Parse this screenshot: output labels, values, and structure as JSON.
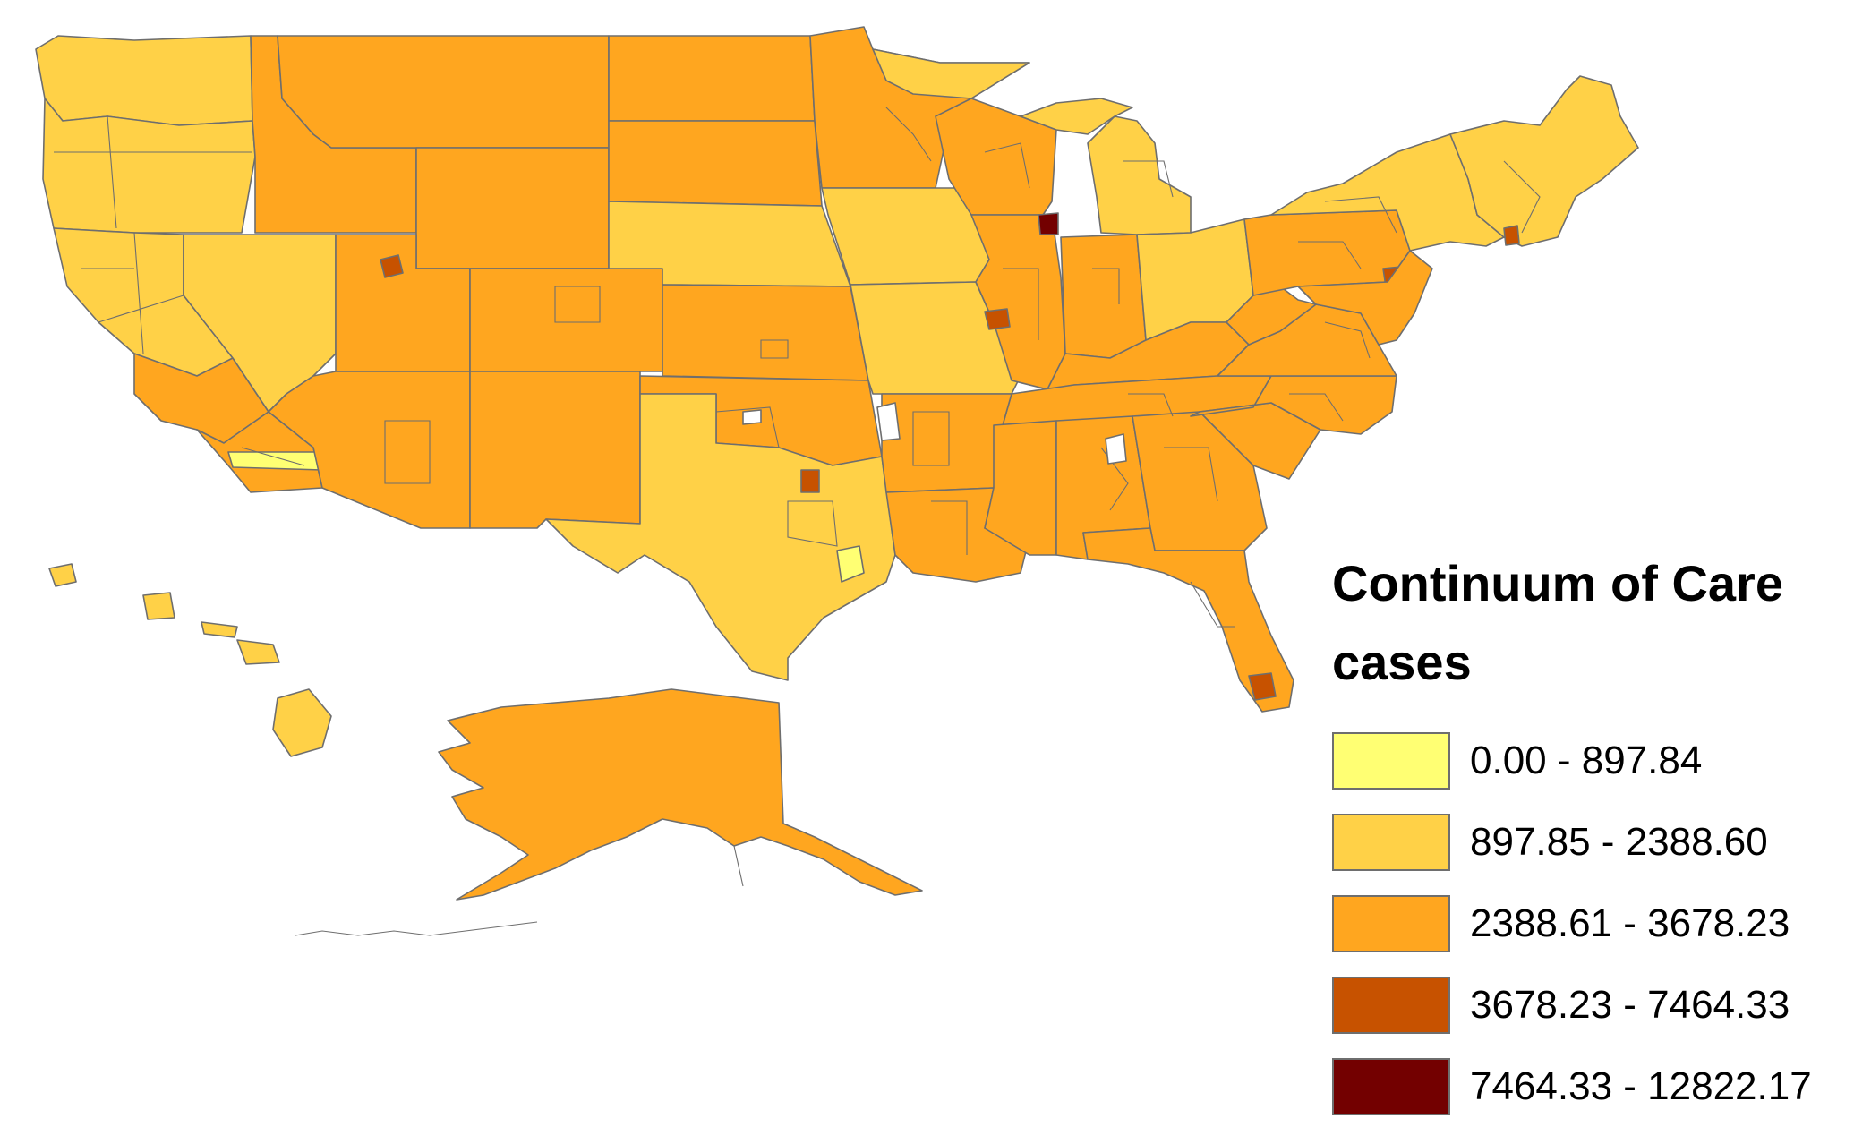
{
  "legend": {
    "title_line1": "Continuum of Care",
    "title_line2": "cases",
    "classes": [
      {
        "label": "0.00 - 897.84",
        "min": 0.0,
        "max": 897.84,
        "color": "#ffff73"
      },
      {
        "label": "897.85 - 2388.60",
        "min": 897.85,
        "max": 2388.6,
        "color": "#ffd147"
      },
      {
        "label": "2388.61 - 3678.23",
        "min": 2388.61,
        "max": 3678.23,
        "color": "#ffa61f"
      },
      {
        "label": "3678.23 - 7464.33",
        "min": 3678.23,
        "max": 7464.33,
        "color": "#c75200"
      },
      {
        "label": "7464.33 - 12822.17",
        "min": 7464.33,
        "max": 12822.17,
        "color": "#730000"
      }
    ]
  },
  "map": {
    "boundary_color": "#6e6e6e",
    "no_data_color": "#ffffff"
  }
}
